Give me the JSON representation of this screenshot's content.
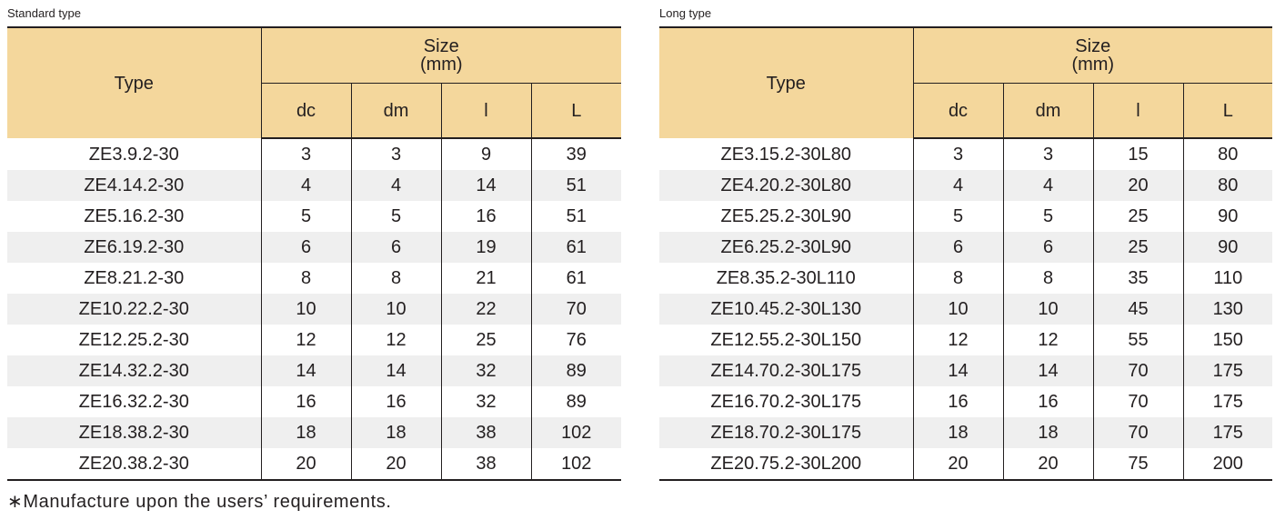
{
  "standard": {
    "caption": "Standard type",
    "type_header": "Type",
    "size_header_line1": "Size",
    "size_header_line2": "(mm)",
    "columns": [
      "dc",
      "dm",
      "l",
      "L"
    ],
    "rows": [
      {
        "type": "ZE3.9.2-30",
        "dc": "3",
        "dm": "3",
        "l": "9",
        "L": "39"
      },
      {
        "type": "ZE4.14.2-30",
        "dc": "4",
        "dm": "4",
        "l": "14",
        "L": "51"
      },
      {
        "type": "ZE5.16.2-30",
        "dc": "5",
        "dm": "5",
        "l": "16",
        "L": "51"
      },
      {
        "type": "ZE6.19.2-30",
        "dc": "6",
        "dm": "6",
        "l": "19",
        "L": "61"
      },
      {
        "type": "ZE8.21.2-30",
        "dc": "8",
        "dm": "8",
        "l": "21",
        "L": "61"
      },
      {
        "type": "ZE10.22.2-30",
        "dc": "10",
        "dm": "10",
        "l": "22",
        "L": "70"
      },
      {
        "type": "ZE12.25.2-30",
        "dc": "12",
        "dm": "12",
        "l": "25",
        "L": "76"
      },
      {
        "type": "ZE14.32.2-30",
        "dc": "14",
        "dm": "14",
        "l": "32",
        "L": "89"
      },
      {
        "type": "ZE16.32.2-30",
        "dc": "16",
        "dm": "16",
        "l": "32",
        "L": "89"
      },
      {
        "type": "ZE18.38.2-30",
        "dc": "18",
        "dm": "18",
        "l": "38",
        "L": "102"
      },
      {
        "type": "ZE20.38.2-30",
        "dc": "20",
        "dm": "20",
        "l": "38",
        "L": "102"
      }
    ]
  },
  "long": {
    "caption": "Long type",
    "type_header": "Type",
    "size_header_line1": "Size",
    "size_header_line2": "(mm)",
    "columns": [
      "dc",
      "dm",
      "l",
      "L"
    ],
    "rows": [
      {
        "type": "ZE3.15.2-30L80",
        "dc": "3",
        "dm": "3",
        "l": "15",
        "L": "80"
      },
      {
        "type": "ZE4.20.2-30L80",
        "dc": "4",
        "dm": "4",
        "l": "20",
        "L": "80"
      },
      {
        "type": "ZE5.25.2-30L90",
        "dc": "5",
        "dm": "5",
        "l": "25",
        "L": "90"
      },
      {
        "type": "ZE6.25.2-30L90",
        "dc": "6",
        "dm": "6",
        "l": "25",
        "L": "90"
      },
      {
        "type": "ZE8.35.2-30L110",
        "dc": "8",
        "dm": "8",
        "l": "35",
        "L": "110"
      },
      {
        "type": "ZE10.45.2-30L130",
        "dc": "10",
        "dm": "10",
        "l": "45",
        "L": "130"
      },
      {
        "type": "ZE12.55.2-30L150",
        "dc": "12",
        "dm": "12",
        "l": "55",
        "L": "150"
      },
      {
        "type": "ZE14.70.2-30L175",
        "dc": "14",
        "dm": "14",
        "l": "70",
        "L": "175"
      },
      {
        "type": "ZE16.70.2-30L175",
        "dc": "16",
        "dm": "16",
        "l": "70",
        "L": "175"
      },
      {
        "type": "ZE18.70.2-30L175",
        "dc": "18",
        "dm": "18",
        "l": "70",
        "L": "175"
      },
      {
        "type": "ZE20.75.2-30L200",
        "dc": "20",
        "dm": "20",
        "l": "75",
        "L": "200"
      }
    ]
  },
  "footnote": "∗Manufacture upon the users’ requirements.",
  "colors": {
    "header_background": "#f4d79c",
    "stripe_background": "#efefef",
    "rule": "#231f20"
  }
}
